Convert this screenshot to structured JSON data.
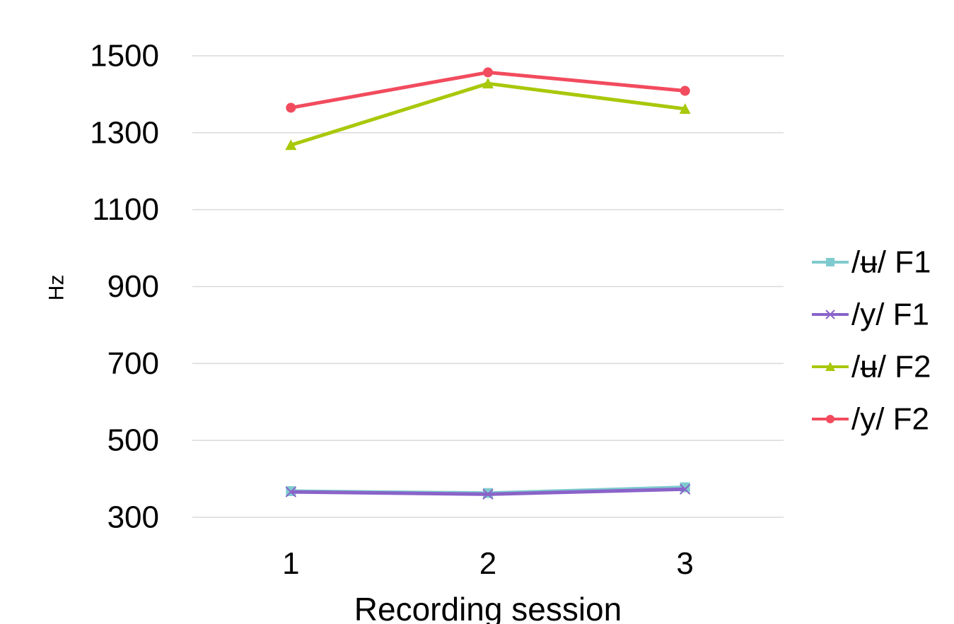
{
  "chart_data": {
    "type": "line",
    "title": "",
    "xlabel": "Recording session",
    "ylabel": "Hz",
    "categories": [
      "1",
      "2",
      "3"
    ],
    "ylim": [
      300,
      1500
    ],
    "yticks": [
      300,
      500,
      700,
      900,
      1100,
      1300,
      1500
    ],
    "grid": true,
    "legend_position": "right",
    "series": [
      {
        "name": "/ʉ/ F1",
        "values": [
          368,
          363,
          378
        ],
        "color": "#7ecbcf",
        "marker": "square"
      },
      {
        "name": "/y/ F1",
        "values": [
          366,
          360,
          373
        ],
        "color": "#8a63c9",
        "marker": "x"
      },
      {
        "name": "/ʉ/ F2",
        "values": [
          1268,
          1428,
          1362
        ],
        "color": "#a8c80a",
        "marker": "triangle"
      },
      {
        "name": "/y/ F2",
        "values": [
          1365,
          1457,
          1409
        ],
        "color": "#f24b5e",
        "marker": "circle"
      }
    ]
  }
}
